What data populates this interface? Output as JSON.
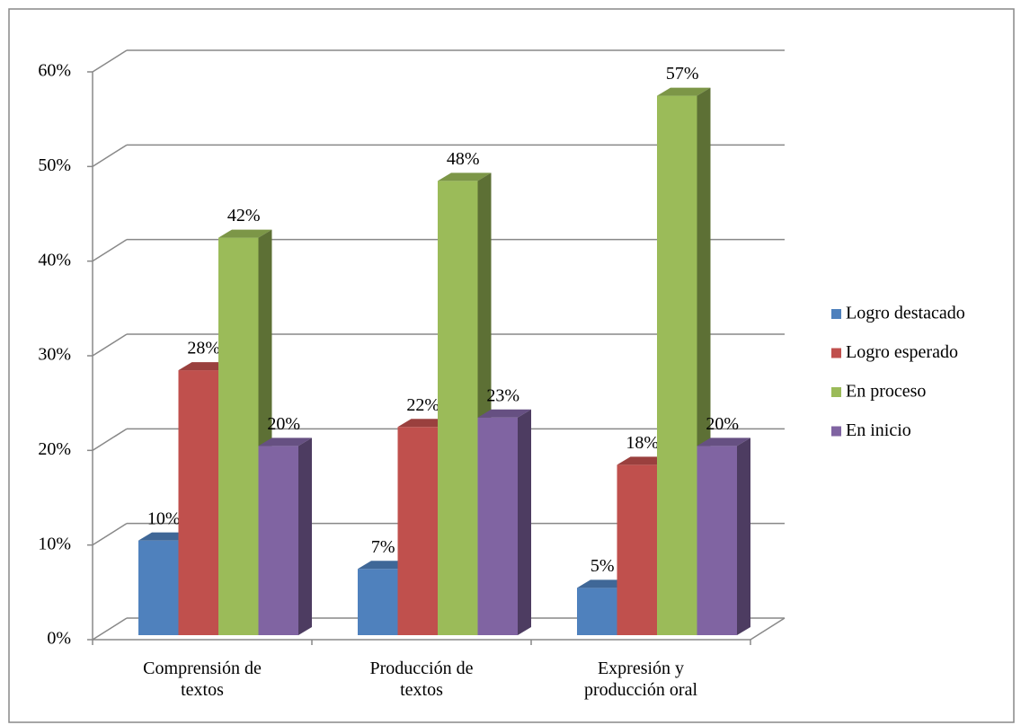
{
  "chart_data": {
    "type": "bar3d",
    "categories": [
      "Comprensión de textos",
      "Producción de textos",
      "Expresión y producción oral"
    ],
    "series": [
      {
        "name": "Logro destacado",
        "color": "#4f81bd",
        "values": [
          10,
          7,
          5
        ],
        "value_labels": [
          "10%",
          "7%",
          "5%"
        ]
      },
      {
        "name": "Logro esperado",
        "color": "#c0504d",
        "values": [
          28,
          22,
          18
        ],
        "value_labels": [
          "28%",
          "22%",
          "18%"
        ]
      },
      {
        "name": "En proceso",
        "color": "#9bbb59",
        "values": [
          42,
          48,
          57
        ],
        "value_labels": [
          "42%",
          "48%",
          "57%"
        ]
      },
      {
        "name": "En inicio",
        "color": "#8064a2",
        "values": [
          20,
          23,
          20
        ],
        "value_labels": [
          "20%",
          "23%",
          "20%"
        ]
      }
    ],
    "ylim": [
      0,
      60
    ],
    "yticks": [
      {
        "value": 0,
        "label": "0%"
      },
      {
        "value": 10,
        "label": "10%"
      },
      {
        "value": 20,
        "label": "20%"
      },
      {
        "value": 30,
        "label": "30%"
      },
      {
        "value": 40,
        "label": "40%"
      },
      {
        "value": 50,
        "label": "50%"
      },
      {
        "value": 60,
        "label": "60%"
      }
    ],
    "grid": true,
    "legend": "right"
  }
}
